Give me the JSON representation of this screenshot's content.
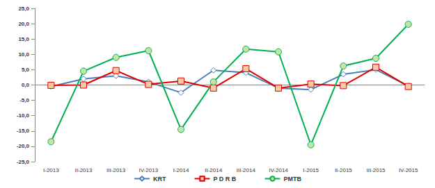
{
  "chart_data": {
    "type": "line",
    "categories": [
      "I-2013",
      "II-2013",
      "III-2013",
      "IV-2013",
      "I-2014",
      "II-2014",
      "III-2014",
      "IV-2014",
      "I-2015",
      "II-2015",
      "III-2015",
      "IV-2015"
    ],
    "series": [
      {
        "name": "KRT",
        "color": "#4a7ebb",
        "marker": "diamond",
        "values": [
          -0.5,
          2.0,
          3.0,
          1.0,
          -2.5,
          4.8,
          4.0,
          -1.0,
          -1.5,
          3.5,
          5.0,
          -0.3
        ]
      },
      {
        "name": "P D R B",
        "color": "#e00000",
        "marker": "square",
        "values": [
          -0.1,
          0.0,
          4.7,
          0.2,
          1.3,
          -1.0,
          5.3,
          -1.0,
          0.3,
          -0.2,
          5.8,
          -0.5
        ]
      },
      {
        "name": "PMTB",
        "color": "#00b050",
        "marker": "circle",
        "values": [
          -18.5,
          4.5,
          9.0,
          11.2,
          -14.5,
          1.0,
          11.7,
          10.8,
          -19.5,
          6.2,
          8.7,
          19.8
        ]
      }
    ],
    "ylim": [
      -25,
      25
    ],
    "yticks": [
      {
        "value": -25,
        "label": "-25,0"
      },
      {
        "value": -20,
        "label": "-20,0"
      },
      {
        "value": -15,
        "label": "-15,0"
      },
      {
        "value": -10,
        "label": "-10,0"
      },
      {
        "value": -5,
        "label": "-5,0"
      },
      {
        "value": 0,
        "label": "0,0"
      },
      {
        "value": 5,
        "label": "5,0"
      },
      {
        "value": 10,
        "label": "10,0"
      },
      {
        "value": 15,
        "label": "15,0"
      },
      {
        "value": 20,
        "label": "20,0"
      },
      {
        "value": 25,
        "label": "25,0"
      }
    ],
    "grid": false,
    "legend": "bottom"
  }
}
